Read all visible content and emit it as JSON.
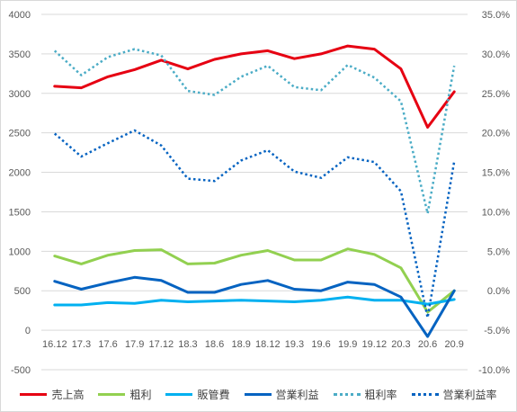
{
  "chart_data": {
    "type": "line",
    "categories": [
      "16.12",
      "17.3",
      "17.6",
      "17.9",
      "17.12",
      "18.3",
      "18.6",
      "18.9",
      "18.12",
      "19.3",
      "19.6",
      "19.9",
      "19.12",
      "20.3",
      "20.6",
      "20.9"
    ],
    "ylim": [
      -500,
      4000
    ],
    "yticks": [
      4000,
      3500,
      3000,
      2500,
      2000,
      1500,
      1000,
      500,
      0,
      -500
    ],
    "y2lim": [
      -0.1,
      0.35
    ],
    "y2ticks": [
      "35.0%",
      "30.0%",
      "25.0%",
      "20.0%",
      "15.0%",
      "10.0%",
      "5.0%",
      "0.0%",
      "-5.0%",
      "-10.0%"
    ],
    "y2tick_values": [
      0.35,
      0.3,
      0.25,
      0.2,
      0.15,
      0.1,
      0.05,
      0.0,
      -0.05,
      -0.1
    ],
    "grid": true,
    "legend_position": "bottom",
    "series": [
      {
        "name": "売上高",
        "axis": "left",
        "color": "#e60012",
        "style": "solid",
        "values": [
          3090,
          3070,
          3210,
          3300,
          3420,
          3310,
          3430,
          3500,
          3540,
          3440,
          3500,
          3600,
          3560,
          3310,
          2570,
          3020
        ]
      },
      {
        "name": "粗利",
        "axis": "left",
        "color": "#92d050",
        "style": "solid",
        "values": [
          940,
          840,
          950,
          1010,
          1020,
          840,
          850,
          950,
          1010,
          890,
          890,
          1030,
          960,
          790,
          230,
          500
        ]
      },
      {
        "name": "販管費",
        "axis": "left",
        "color": "#00b0f0",
        "style": "solid",
        "values": [
          320,
          320,
          350,
          340,
          380,
          360,
          370,
          380,
          370,
          360,
          380,
          420,
          380,
          380,
          330,
          390
        ]
      },
      {
        "name": "営業利益",
        "axis": "left",
        "color": "#0563c1",
        "style": "solid",
        "values": [
          620,
          520,
          600,
          670,
          630,
          480,
          480,
          580,
          630,
          520,
          500,
          610,
          580,
          420,
          -80,
          500
        ]
      },
      {
        "name": "粗利率",
        "axis": "right",
        "color": "#4bacc6",
        "style": "dotted",
        "values": [
          0.304,
          0.273,
          0.296,
          0.306,
          0.298,
          0.253,
          0.248,
          0.271,
          0.285,
          0.258,
          0.254,
          0.286,
          0.27,
          0.24,
          0.098,
          0.285
        ]
      },
      {
        "name": "営業利益率",
        "axis": "right",
        "color": "#0563c1",
        "style": "dotted",
        "values": [
          0.199,
          0.17,
          0.187,
          0.203,
          0.184,
          0.142,
          0.139,
          0.165,
          0.178,
          0.151,
          0.143,
          0.169,
          0.163,
          0.126,
          -0.034,
          0.164
        ]
      }
    ]
  }
}
